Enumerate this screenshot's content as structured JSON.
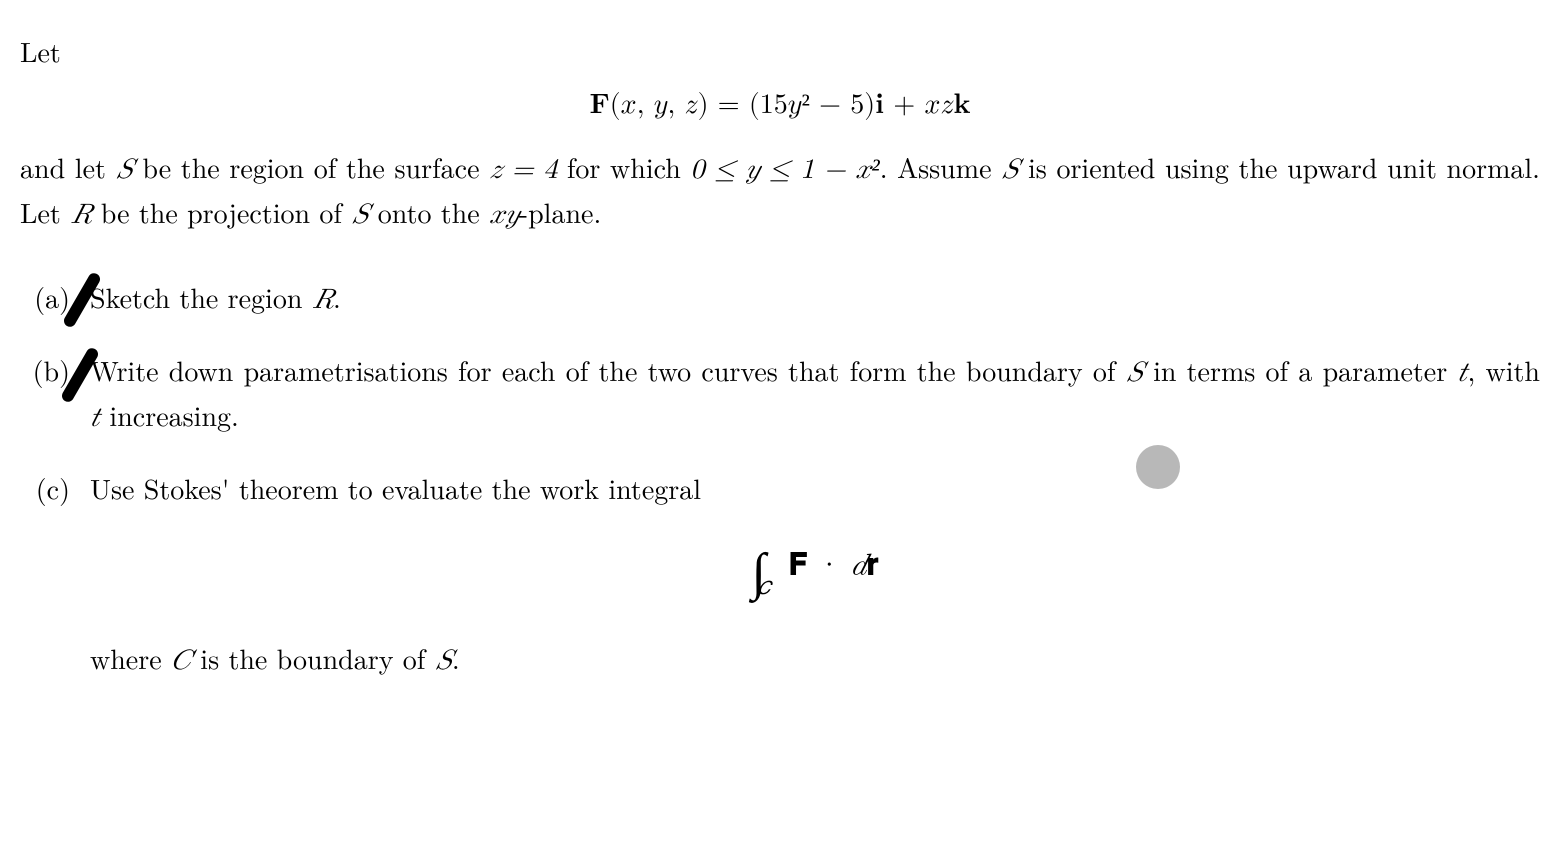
{
  "intro": {
    "let": "Let"
  },
  "equation_main": "𝐅(𝑥, 𝑦, 𝑧) = (15𝑦² − 5)𝐢 + 𝑥𝑧𝐤",
  "body": {
    "part1": "and let ",
    "S1": "𝑆",
    "part2": " be the region of the surface ",
    "eq1": "𝑧 = 4",
    "part3": " for which ",
    "eq2": "0 ≤ 𝑦 ≤ 1 − 𝑥²",
    "part4": ".  Assume ",
    "S2": "𝑆",
    "part5": " is oriented using the upward unit normal.  Let ",
    "R1": "𝑅",
    "part6": " be the projection of ",
    "S3": "𝑆",
    "part7": " onto the ",
    "xy": "𝑥𝑦",
    "part8": "-plane."
  },
  "items": {
    "a": {
      "label": "(a)",
      "text1": "Sketch the region ",
      "R": "𝑅",
      "text2": "."
    },
    "b": {
      "label": "(b)",
      "text1": "Write down parametrisations for each of the two curves that form the boundary of ",
      "S": "𝑆",
      "text2": " in terms of a parameter ",
      "t1": "𝑡",
      "text3": ", with ",
      "t2": "𝑡",
      "text4": " increasing."
    },
    "c": {
      "label": "(c)",
      "text1": "Use Stokes' theorem to evaluate the work integral",
      "integral_sym": "∫",
      "sub_C": "𝐶",
      "F": "𝐅",
      "dot": " · ",
      "d": "𝑑",
      "r": "𝐫",
      "where1": "where ",
      "C": "𝐶",
      "where2": " is the boundary of ",
      "S": "𝑆",
      "where3": "."
    }
  },
  "annotations": {
    "strike_color": "#000000",
    "dot_color": "#b8b8b8"
  }
}
